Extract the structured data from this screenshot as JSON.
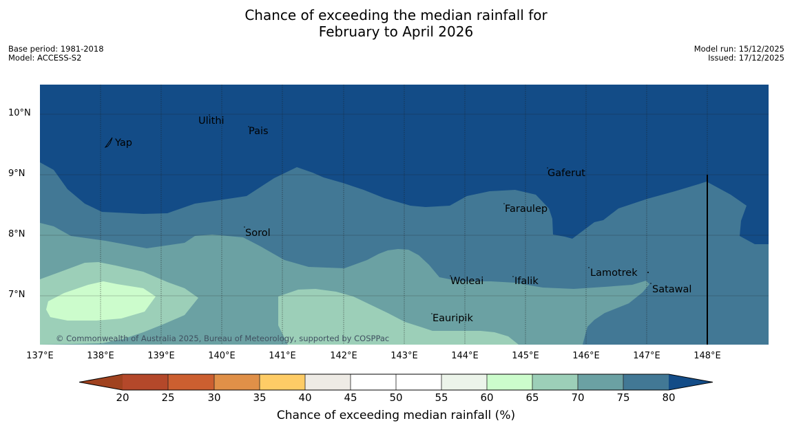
{
  "header": {
    "title_line1": "Chance of exceeding the median rainfall for",
    "title_line2": "February to April 2026",
    "base_period": "Base period: 1981-2018",
    "model": "Model: ACCESS-S2",
    "model_run": "Model run: 15/12/2025",
    "issued": "Issued: 17/12/2025"
  },
  "map": {
    "lat_labels": [
      "10°N",
      "9°N",
      "8°N",
      "7°N"
    ],
    "lon_labels": [
      "137°E",
      "138°E",
      "139°E",
      "140°E",
      "141°E",
      "142°E",
      "143°E",
      "144°E",
      "145°E",
      "146°E",
      "147°E",
      "148°E"
    ],
    "places": [
      "Ulithi",
      "Pais",
      "Yap",
      "Gaferut",
      "Faraulep",
      "Sorol",
      "Lamotrek",
      "Woleai",
      "Ifalik",
      "Satawal",
      "Eauripik"
    ],
    "copyright": "© Commonwealth of Australia 2025, Bureau of Meteorology, supported by COSPPac"
  },
  "colorbar": {
    "ticks": [
      "20",
      "25",
      "30",
      "35",
      "40",
      "45",
      "50",
      "55",
      "60",
      "65",
      "70",
      "75",
      "80"
    ],
    "title": "Chance of exceeding median rainfall (%)",
    "colors": {
      "below_20": "#a0421f",
      "c20_25": "#b4482a",
      "c25_30": "#cc5f30",
      "c30_35": "#e09048",
      "c35_40": "#fecc66",
      "c40_45": "#eeebe5",
      "c45_50": "#ffffff",
      "c50_55": "#ffffff",
      "c55_60": "#ecf4ea",
      "c60_65": "#ccfccc",
      "c65_70": "#9ccfb8",
      "c70_75": "#6ba1a3",
      "c75_80": "#427895",
      "above_80": "#134c87"
    }
  }
}
